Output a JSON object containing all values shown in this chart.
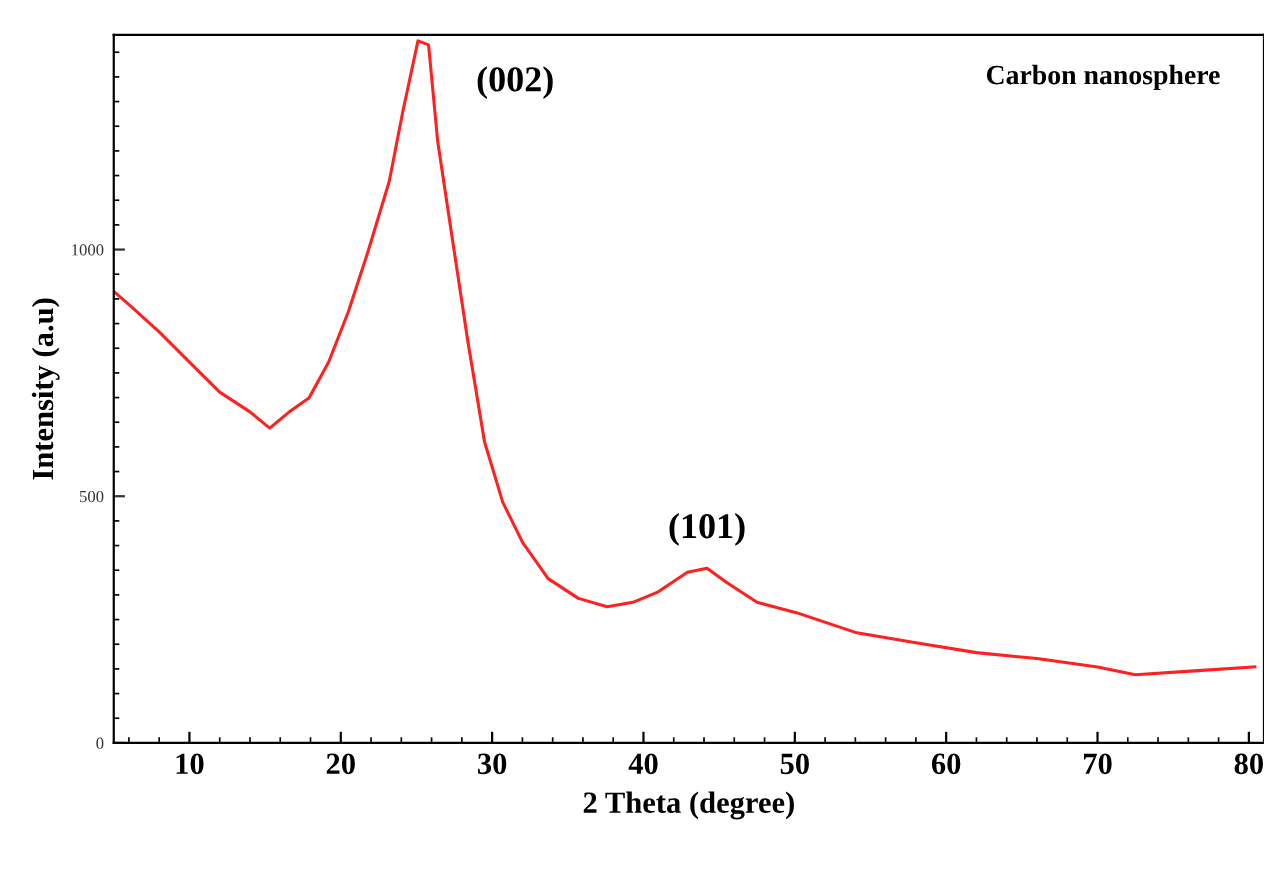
{
  "chart_data": {
    "type": "line",
    "xlabel": "2 Theta (degree)",
    "ylabel": "Intensity (a.u)",
    "x": [
      5,
      6.1,
      8,
      10,
      12,
      14,
      15.3,
      16.6,
      17.9,
      19.2,
      20.5,
      21.8,
      23.2,
      24.1,
      25.1,
      25.8,
      26.4,
      27.4,
      28.4,
      29.5,
      30.7,
      32,
      33.7,
      35.7,
      37.6,
      39.3,
      40.9,
      42.9,
      44.2,
      45.5,
      47.5,
      50.1,
      54,
      58,
      62,
      66,
      70,
      72.5,
      76.4,
      80.4
    ],
    "series": [
      {
        "color": "#ff2020",
        "values": [
          915,
          886,
          833,
          772,
          711,
          671,
          638,
          671,
          699,
          772,
          874,
          996,
          1138,
          1280,
          1423,
          1415,
          1220,
          1016,
          813,
          610,
          488,
          407,
          333,
          293,
          276,
          285,
          305,
          346,
          354,
          325,
          285,
          264,
          224,
          203,
          183,
          171,
          154,
          138,
          146,
          154
        ]
      }
    ],
    "xlim": [
      5,
      81
    ],
    "ylim": [
      0,
      1435
    ],
    "xticks": [
      10,
      20,
      30,
      40,
      50,
      60,
      70,
      80
    ],
    "yticks": [
      0,
      500,
      1000
    ],
    "annotations": [
      {
        "text": "(002)",
        "x": 25.1,
        "y": 1423
      },
      {
        "text": "(101)",
        "x": 44.2,
        "y": 354
      },
      "Carbon nanosphere"
    ],
    "grid": false,
    "legend": false,
    "marker": "none",
    "line_style": "solid"
  }
}
